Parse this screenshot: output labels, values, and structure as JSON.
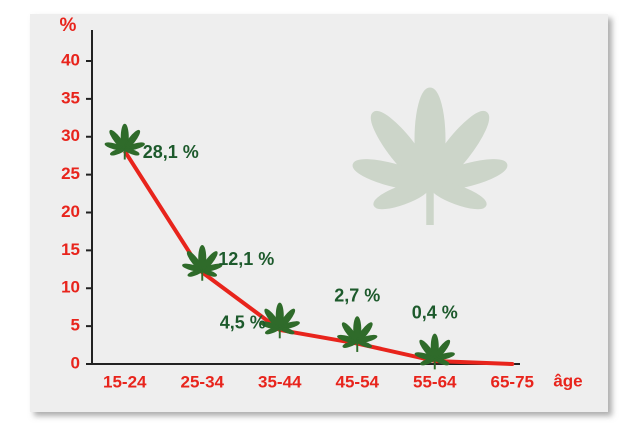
{
  "chart_data": {
    "type": "line",
    "y_label": "%",
    "x_label": "âge",
    "categories": [
      "15-24",
      "25-34",
      "35-44",
      "45-54",
      "55-64",
      "65-75"
    ],
    "values": [
      28.1,
      12.1,
      4.5,
      2.7,
      0.4,
      0
    ],
    "value_labels": [
      "28,1 %",
      "12,1 %",
      "4,5 %",
      "2,7 %",
      "0,4 %",
      null
    ],
    "color": "#e8241c",
    "marker_color": "#2f6b2a",
    "ylim": [
      0,
      44
    ],
    "yticks": [
      0,
      5,
      10,
      15,
      20,
      25,
      30,
      35,
      40
    ]
  }
}
